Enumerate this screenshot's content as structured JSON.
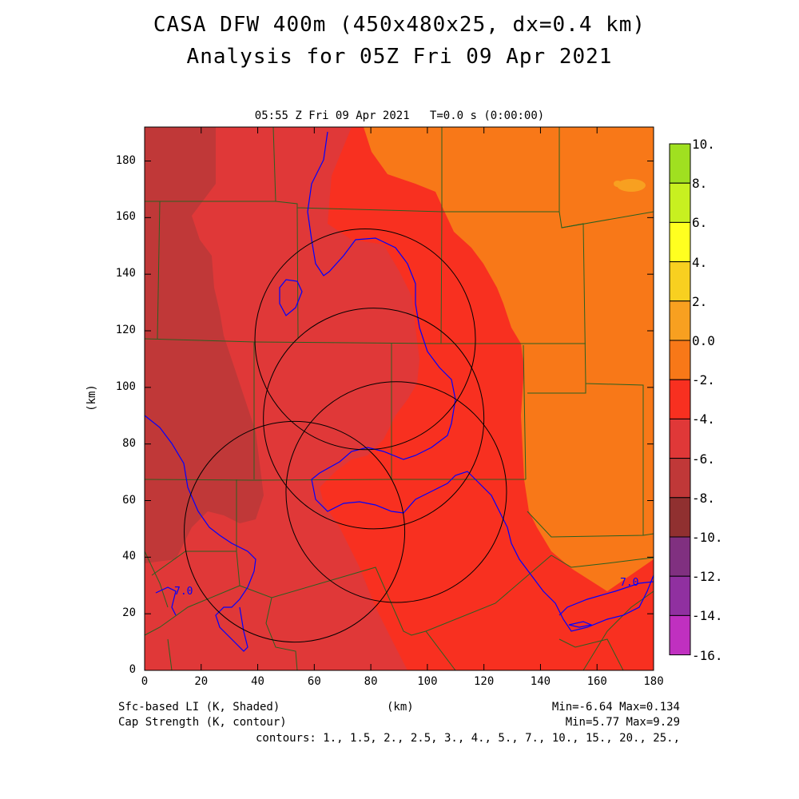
{
  "title_line1": "CASA DFW 400m (450x480x25, dx=0.4 km)",
  "title_line2": "Analysis for 05Z Fri 09 Apr 2021",
  "subtitle": "05:55 Z Fri 09 Apr 2021   T=0.0 s (0:00:00)",
  "x_axis": {
    "label": "(km)",
    "ticks": [
      "0",
      "20",
      "40",
      "60",
      "80",
      "100",
      "120",
      "140",
      "160",
      "180"
    ]
  },
  "y_axis": {
    "label": "(km)",
    "ticks": [
      "0",
      "20",
      "40",
      "60",
      "80",
      "100",
      "120",
      "140",
      "160",
      "180"
    ]
  },
  "legend": {
    "labels": [
      "10.",
      "8.",
      "6.",
      "4.",
      "2.",
      "0.0",
      "-2.",
      "-4.",
      "-6.",
      "-8.",
      "-10.",
      "-12.",
      "-14.",
      "-16."
    ],
    "colors": [
      "#a0e020",
      "#c8f020",
      "#ffff20",
      "#f8d020",
      "#f8a020",
      "#f87818",
      "#f83020",
      "#e03838",
      "#c03838",
      "#903030",
      "#803080",
      "#9030a0",
      "#c030c0",
      "#e040e0"
    ]
  },
  "colors": {
    "orange": "#f87818",
    "red": "#f83020",
    "dark_red": "#e03838",
    "darker_red": "#c03838",
    "boundary": "#2a6020",
    "contour": "#0000ff"
  },
  "contour_labels": [
    "7.0",
    "7.0"
  ],
  "footer": {
    "left1": "Sfc-based LI (K, Shaded)",
    "left2": "Cap Strength (K, contour)",
    "center": "(km)",
    "right1": "Min=-6.64 Max=0.134",
    "right2": "Min=5.77 Max=9.29",
    "contours": "contours: 1., 1.5, 2., 2.5, 3., 4., 5., 7., 10., 15., 20., 25.,"
  },
  "radars": [
    {
      "name": "radar-ring-ne",
      "cx_km": 78,
      "cy_km": 117,
      "r_km": 39
    },
    {
      "name": "radar-ring-n",
      "cx_km": 81,
      "cy_km": 89,
      "r_km": 39
    },
    {
      "name": "radar-ring-c",
      "cx_km": 89,
      "cy_km": 63,
      "r_km": 39
    },
    {
      "name": "radar-ring-sw",
      "cx_km": 53,
      "cy_km": 49,
      "r_km": 39
    }
  ]
}
